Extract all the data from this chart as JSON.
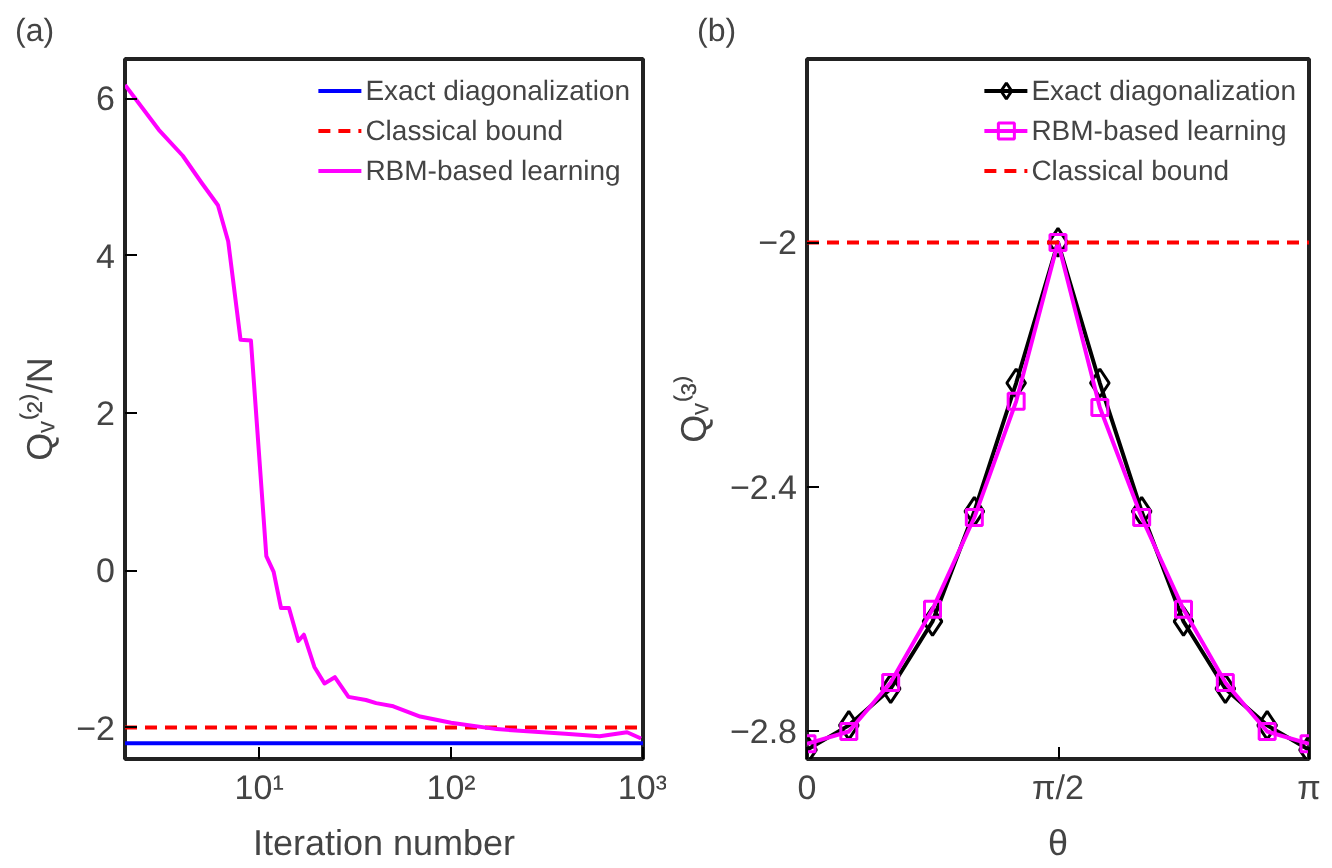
{
  "chart_data": [
    {
      "type": "line",
      "title": "(a)",
      "xlabel": "Iteration number",
      "ylabel": "Qᵥ⁽²⁾/N",
      "log": "x",
      "xlim": [
        2,
        1000
      ],
      "ylim": [
        -2.4,
        6.5
      ],
      "xticks": [
        {
          "value": 10,
          "label": "10¹"
        },
        {
          "value": 100,
          "label": "10²"
        },
        {
          "value": 1000,
          "label": "10³"
        }
      ],
      "yticks": [
        -2,
        0,
        2,
        4,
        6
      ],
      "grid": false,
      "legend": "top right",
      "series": [
        {
          "name": "Exact diagonalization",
          "color": "#0000ff",
          "x": [
            2,
            1000
          ],
          "values": [
            -2.2,
            -2.2
          ],
          "line_style": "solid"
        },
        {
          "name": "Classical bound",
          "color": "#ff0000",
          "x": [
            2,
            1000
          ],
          "values": [
            -2,
            -2
          ],
          "line_style": "dashed"
        },
        {
          "name": "RBM-based learning",
          "color": "#ff00ff",
          "line_style": "solid",
          "x": [
            2,
            3.0,
            4.0,
            5.0,
            6.1,
            6.9,
            8.0,
            9.06,
            10.9,
            11.9,
            13.0,
            14.3,
            16.0,
            17.1,
            19.4,
            21.9,
            24.8,
            29.2,
            36,
            40.7,
            50,
            69,
            100,
            173,
            261,
            394,
            594,
            826,
            977
          ],
          "values": [
            6.17,
            5.6,
            5.27,
            4.93,
            4.64,
            4.18,
            2.93,
            2.92,
            0.18,
            -0.02,
            -0.48,
            -0.48,
            -0.9,
            -0.82,
            -1.23,
            -1.44,
            -1.36,
            -1.61,
            -1.65,
            -1.69,
            -1.73,
            -1.86,
            -1.94,
            -2.02,
            -2.05,
            -2.08,
            -2.11,
            -2.06,
            -2.14
          ]
        }
      ]
    },
    {
      "type": "line",
      "title": "(b)",
      "xlabel": "θ",
      "ylabel": "Qᵥ⁽³⁾",
      "xlim": [
        0,
        3.1416
      ],
      "ylim": [
        -2.845,
        -1.7
      ],
      "xticks": [
        {
          "value": 0,
          "label": "0"
        },
        {
          "value": 1.5708,
          "label": "π/2"
        },
        {
          "value": 3.1416,
          "label": "π"
        }
      ],
      "yticks": [
        -2.8,
        -2.4,
        -2
      ],
      "grid": false,
      "legend": "top right",
      "x": [
        0,
        0.2618,
        0.5236,
        0.7854,
        1.0472,
        1.309,
        1.5708,
        1.8326,
        2.0944,
        2.3562,
        2.618,
        2.8798,
        3.1416
      ],
      "series": [
        {
          "name": "Exact diagonalization",
          "color": "#000000",
          "marker": "diamond",
          "line_style": "solid",
          "values": [
            -2.83,
            -2.79,
            -2.73,
            -2.62,
            -2.44,
            -2.23,
            -2.0,
            -2.23,
            -2.44,
            -2.62,
            -2.73,
            -2.79,
            -2.83
          ]
        },
        {
          "name": "RBM-based learning",
          "color": "#ff00ff",
          "marker": "square",
          "line_style": "solid",
          "values": [
            -2.82,
            -2.8,
            -2.72,
            -2.6,
            -2.45,
            -2.26,
            -2.0,
            -2.27,
            -2.45,
            -2.6,
            -2.72,
            -2.8,
            -2.82
          ]
        },
        {
          "name": "Classical bound",
          "color": "#ff0000",
          "x": [
            0,
            3.1416
          ],
          "values": [
            -2,
            -2
          ],
          "line_style": "dashed"
        }
      ]
    }
  ]
}
